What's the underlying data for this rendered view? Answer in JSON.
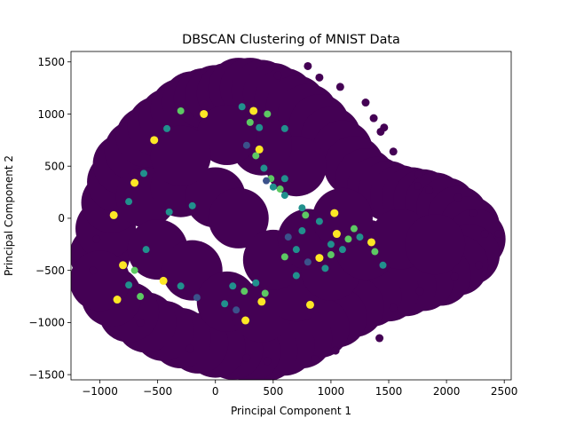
{
  "chart_data": {
    "type": "scatter",
    "title": "DBSCAN Clustering of MNIST Data",
    "xlabel": "Principal Component 1",
    "ylabel": "Principal Component 2",
    "xlim": [
      -1250,
      2560
    ],
    "ylim": [
      -1550,
      1600
    ],
    "xticks": [
      -1000,
      -500,
      0,
      500,
      1000,
      1500,
      2000,
      2500
    ],
    "yticks": [
      -1500,
      -1000,
      -500,
      0,
      500,
      1000,
      1500
    ],
    "grid": false,
    "legend": "none",
    "colors": {
      "noise": "#440154",
      "cluster_teal": "#21908d",
      "cluster_blue": "#3b528b",
      "cluster_green": "#5dc963",
      "cluster_yellow": "#fde725"
    },
    "main_mass_points": [
      {
        "x": -1000,
        "y": -350
      },
      {
        "x": -950,
        "y": -100
      },
      {
        "x": -900,
        "y": 150
      },
      {
        "x": -850,
        "y": 350
      },
      {
        "x": -800,
        "y": 520
      },
      {
        "x": -700,
        "y": 650
      },
      {
        "x": -600,
        "y": 780
      },
      {
        "x": -500,
        "y": 880
      },
      {
        "x": -400,
        "y": 960
      },
      {
        "x": -300,
        "y": 1050
      },
      {
        "x": -200,
        "y": 1120
      },
      {
        "x": -100,
        "y": 1150
      },
      {
        "x": 0,
        "y": 1180
      },
      {
        "x": 100,
        "y": 1200
      },
      {
        "x": 200,
        "y": 1250
      },
      {
        "x": 300,
        "y": 1250
      },
      {
        "x": 400,
        "y": 1230
      },
      {
        "x": 500,
        "y": 1200
      },
      {
        "x": 600,
        "y": 1150
      },
      {
        "x": 700,
        "y": 1080
      },
      {
        "x": 800,
        "y": 1000
      },
      {
        "x": 900,
        "y": 900
      },
      {
        "x": 1000,
        "y": 780
      },
      {
        "x": 1100,
        "y": 650
      },
      {
        "x": 1200,
        "y": 500
      },
      {
        "x": 1300,
        "y": 380
      },
      {
        "x": 1400,
        "y": 300
      },
      {
        "x": 1500,
        "y": 260
      },
      {
        "x": 1600,
        "y": 220
      },
      {
        "x": 1700,
        "y": 200
      },
      {
        "x": 1800,
        "y": 180
      },
      {
        "x": 1900,
        "y": 150
      },
      {
        "x": 2000,
        "y": 100
      },
      {
        "x": 2100,
        "y": 20
      },
      {
        "x": 2200,
        "y": -80
      },
      {
        "x": 2250,
        "y": -200
      },
      {
        "x": 2200,
        "y": -350
      },
      {
        "x": 2100,
        "y": -450
      },
      {
        "x": 1950,
        "y": -550
      },
      {
        "x": 1800,
        "y": -600
      },
      {
        "x": 1650,
        "y": -650
      },
      {
        "x": 1500,
        "y": -700
      },
      {
        "x": 1350,
        "y": -750
      },
      {
        "x": 1200,
        "y": -850
      },
      {
        "x": 1050,
        "y": -950
      },
      {
        "x": 900,
        "y": -1050
      },
      {
        "x": 750,
        "y": -1150
      },
      {
        "x": 600,
        "y": -1220
      },
      {
        "x": 450,
        "y": -1270
      },
      {
        "x": 300,
        "y": -1280
      },
      {
        "x": 150,
        "y": -1260
      },
      {
        "x": 0,
        "y": -1240
      },
      {
        "x": -150,
        "y": -1200
      },
      {
        "x": -300,
        "y": -1150
      },
      {
        "x": -450,
        "y": -1080
      },
      {
        "x": -600,
        "y": -1000
      },
      {
        "x": -750,
        "y": -900
      },
      {
        "x": -900,
        "y": -750
      },
      {
        "x": -1000,
        "y": -600
      },
      {
        "x": -600,
        "y": 200
      },
      {
        "x": -300,
        "y": 300
      },
      {
        "x": 0,
        "y": 200
      },
      {
        "x": 200,
        "y": 0
      },
      {
        "x": -500,
        "y": -300
      },
      {
        "x": -200,
        "y": -500
      },
      {
        "x": 100,
        "y": -800
      },
      {
        "x": 400,
        "y": -900
      },
      {
        "x": 700,
        "y": -700
      },
      {
        "x": 1000,
        "y": -500
      },
      {
        "x": 1300,
        "y": -300
      },
      {
        "x": 1600,
        "y": -200
      },
      {
        "x": 1900,
        "y": -250
      },
      {
        "x": 500,
        "y": -400
      },
      {
        "x": 800,
        "y": -200
      },
      {
        "x": 1100,
        "y": 0
      },
      {
        "x": 700,
        "y": 500
      },
      {
        "x": 400,
        "y": 700
      },
      {
        "x": 100,
        "y": 800
      },
      {
        "x": -300,
        "y": 600
      }
    ],
    "outlier_points": [
      {
        "x": 800,
        "y": 1460
      },
      {
        "x": 540,
        "y": 1370
      },
      {
        "x": 900,
        "y": 1350
      },
      {
        "x": 1080,
        "y": 1260
      },
      {
        "x": 1300,
        "y": 1110
      },
      {
        "x": 1370,
        "y": 960
      },
      {
        "x": 1430,
        "y": 830
      },
      {
        "x": 1540,
        "y": 640
      },
      {
        "x": 1750,
        "y": 310
      },
      {
        "x": 1850,
        "y": 270
      },
      {
        "x": 2100,
        "y": 200
      },
      {
        "x": 2230,
        "y": 50
      },
      {
        "x": 2330,
        "y": -150
      },
      {
        "x": 2280,
        "y": -450
      },
      {
        "x": 2070,
        "y": -560
      },
      {
        "x": 1770,
        "y": -700
      },
      {
        "x": 1540,
        "y": -860
      },
      {
        "x": 1420,
        "y": -1150
      },
      {
        "x": 1040,
        "y": -1270
      },
      {
        "x": 860,
        "y": -1350
      },
      {
        "x": 450,
        "y": -1370
      },
      {
        "x": 270,
        "y": -1340
      },
      {
        "x": -220,
        "y": -1250
      },
      {
        "x": -650,
        "y": -1000
      },
      {
        "x": -850,
        "y": -820
      },
      {
        "x": -1060,
        "y": -500
      },
      {
        "x": -1030,
        "y": -200
      },
      {
        "x": 1460,
        "y": 870
      },
      {
        "x": 1760,
        "y": 420
      },
      {
        "x": 2450,
        "y": -150
      }
    ],
    "cluster_points": [
      {
        "x": 230,
        "y": 1070,
        "c": "teal"
      },
      {
        "x": 300,
        "y": 920,
        "c": "green"
      },
      {
        "x": 380,
        "y": 870,
        "c": "teal"
      },
      {
        "x": 270,
        "y": 700,
        "c": "blue"
      },
      {
        "x": 350,
        "y": 600,
        "c": "green"
      },
      {
        "x": 420,
        "y": 480,
        "c": "teal"
      },
      {
        "x": 480,
        "y": 380,
        "c": "green"
      },
      {
        "x": 500,
        "y": 300,
        "c": "teal"
      },
      {
        "x": 440,
        "y": 360,
        "c": "blue"
      },
      {
        "x": 560,
        "y": 280,
        "c": "green"
      },
      {
        "x": 600,
        "y": 220,
        "c": "teal"
      },
      {
        "x": 380,
        "y": 660,
        "c": "yellow"
      },
      {
        "x": 450,
        "y": 1000,
        "c": "green"
      },
      {
        "x": 330,
        "y": 1030,
        "c": "yellow"
      },
      {
        "x": -620,
        "y": 430,
        "c": "teal"
      },
      {
        "x": -700,
        "y": 340,
        "c": "yellow"
      },
      {
        "x": -530,
        "y": 750,
        "c": "yellow"
      },
      {
        "x": -420,
        "y": 860,
        "c": "teal"
      },
      {
        "x": -300,
        "y": 1030,
        "c": "green"
      },
      {
        "x": -100,
        "y": 1000,
        "c": "yellow"
      },
      {
        "x": -880,
        "y": 30,
        "c": "yellow"
      },
      {
        "x": -700,
        "y": -500,
        "c": "green"
      },
      {
        "x": -600,
        "y": -300,
        "c": "teal"
      },
      {
        "x": -750,
        "y": -640,
        "c": "teal"
      },
      {
        "x": -650,
        "y": -750,
        "c": "green"
      },
      {
        "x": -450,
        "y": -600,
        "c": "yellow"
      },
      {
        "x": -300,
        "y": -650,
        "c": "teal"
      },
      {
        "x": -160,
        "y": -760,
        "c": "blue"
      },
      {
        "x": -850,
        "y": -780,
        "c": "yellow"
      },
      {
        "x": -800,
        "y": -450,
        "c": "yellow"
      },
      {
        "x": 150,
        "y": -650,
        "c": "teal"
      },
      {
        "x": 250,
        "y": -700,
        "c": "green"
      },
      {
        "x": 350,
        "y": -620,
        "c": "teal"
      },
      {
        "x": 430,
        "y": -720,
        "c": "green"
      },
      {
        "x": 180,
        "y": -880,
        "c": "blue"
      },
      {
        "x": 260,
        "y": -980,
        "c": "yellow"
      },
      {
        "x": 400,
        "y": -800,
        "c": "yellow"
      },
      {
        "x": 80,
        "y": -820,
        "c": "teal"
      },
      {
        "x": 600,
        "y": -370,
        "c": "green"
      },
      {
        "x": 700,
        "y": -300,
        "c": "teal"
      },
      {
        "x": 800,
        "y": -420,
        "c": "blue"
      },
      {
        "x": 900,
        "y": -380,
        "c": "yellow"
      },
      {
        "x": 1000,
        "y": -350,
        "c": "green"
      },
      {
        "x": 1100,
        "y": -300,
        "c": "teal"
      },
      {
        "x": 1000,
        "y": -250,
        "c": "teal"
      },
      {
        "x": 1150,
        "y": -200,
        "c": "green"
      },
      {
        "x": 1250,
        "y": -180,
        "c": "teal"
      },
      {
        "x": 1350,
        "y": -230,
        "c": "yellow"
      },
      {
        "x": 1380,
        "y": -320,
        "c": "green"
      },
      {
        "x": 1450,
        "y": -450,
        "c": "teal"
      },
      {
        "x": 1200,
        "y": -100,
        "c": "green"
      },
      {
        "x": 1050,
        "y": -150,
        "c": "yellow"
      },
      {
        "x": 780,
        "y": 30,
        "c": "green"
      },
      {
        "x": 900,
        "y": -30,
        "c": "teal"
      },
      {
        "x": 750,
        "y": -120,
        "c": "teal"
      },
      {
        "x": 630,
        "y": -180,
        "c": "blue"
      },
      {
        "x": 700,
        "y": -550,
        "c": "teal"
      },
      {
        "x": 950,
        "y": -480,
        "c": "teal"
      },
      {
        "x": 820,
        "y": -830,
        "c": "yellow"
      },
      {
        "x": 1030,
        "y": 50,
        "c": "yellow"
      },
      {
        "x": 600,
        "y": 380,
        "c": "teal"
      },
      {
        "x": 750,
        "y": 100,
        "c": "teal"
      },
      {
        "x": -400,
        "y": 60,
        "c": "teal"
      },
      {
        "x": -200,
        "y": 120,
        "c": "teal"
      },
      {
        "x": -750,
        "y": 160,
        "c": "teal"
      },
      {
        "x": 600,
        "y": 860,
        "c": "teal"
      }
    ]
  }
}
